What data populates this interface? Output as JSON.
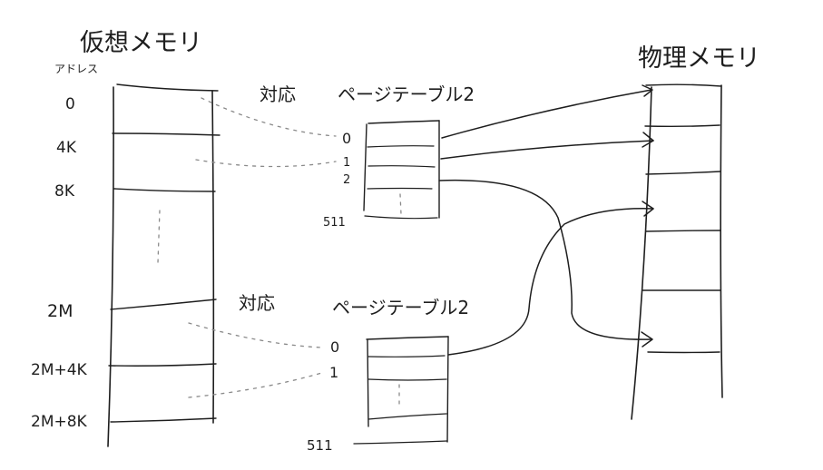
{
  "virtual": {
    "title": "仮想メモリ",
    "address_header": "アドレス",
    "addresses": [
      "0",
      "4K",
      "8K",
      "2M",
      "2M+4K",
      "2M+8K"
    ]
  },
  "physical": {
    "title": "物理メモリ"
  },
  "table1": {
    "label": "ページテーブル2",
    "correspondence": "対応",
    "indices": [
      "0",
      "1",
      "2",
      "511"
    ]
  },
  "table2": {
    "label": "ページテーブル2",
    "correspondence": "対応",
    "indices": [
      "0",
      "1",
      "511"
    ]
  },
  "colors": {
    "ink": "#1e1e1e",
    "dotted": "#8a8a8a",
    "background": "#ffffff"
  }
}
